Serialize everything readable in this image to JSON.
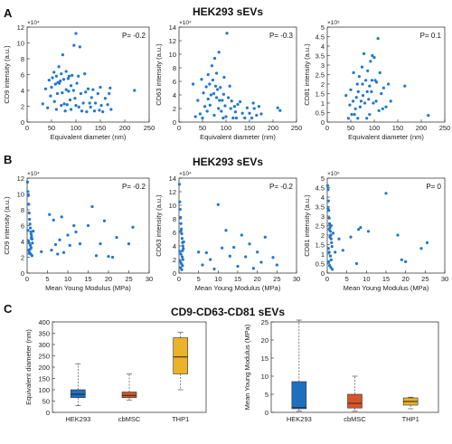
{
  "figure": {
    "panel_labels": [
      "A",
      "B",
      "C"
    ],
    "section_titles": [
      "HEK293 sEVs",
      "HEK293 sEVs",
      "CD9-CD63-CD81 sEVs"
    ],
    "colors": {
      "scatter": "#1f77d0",
      "hek": "#1f6fbf",
      "cbmsc": "#d4552a",
      "thp1": "#eab32a"
    }
  },
  "chart_data": [
    {
      "id": "a1",
      "type": "scatter",
      "panel": "A",
      "xlabel": "Equivalent diameter (nm)",
      "ylabel": "CD9 intensity (a.u.)",
      "xlim": [
        0,
        250
      ],
      "ylim": [
        0,
        12
      ],
      "xticks": [
        0,
        50,
        100,
        150,
        200,
        250
      ],
      "yticks": [
        0,
        2,
        4,
        6,
        8,
        10,
        12
      ],
      "exponent": "×10⁴",
      "annotation": "P= -0.2",
      "x": [
        32,
        38,
        42,
        45,
        48,
        50,
        52,
        55,
        56,
        58,
        60,
        60,
        62,
        63,
        65,
        66,
        68,
        70,
        70,
        72,
        73,
        75,
        76,
        78,
        80,
        80,
        82,
        84,
        85,
        86,
        88,
        90,
        90,
        92,
        95,
        96,
        98,
        100,
        100,
        102,
        105,
        106,
        108,
        110,
        112,
        115,
        118,
        120,
        122,
        125,
        128,
        130,
        132,
        135,
        138,
        140,
        145,
        148,
        150,
        152,
        155,
        160,
        165,
        168,
        170,
        172,
        220
      ],
      "y": [
        2.3,
        4.2,
        1.8,
        5.3,
        3.3,
        4.4,
        5.6,
        6.3,
        2.6,
        4.8,
        5.8,
        1.6,
        3.6,
        5.0,
        7.0,
        4.9,
        5.2,
        6.1,
        2.1,
        3.7,
        8.5,
        5.4,
        2.3,
        1.4,
        6.4,
        4.1,
        2.2,
        5.5,
        3.9,
        5.8,
        2.8,
        4.6,
        1.6,
        5.9,
        4.0,
        9.7,
        3.0,
        11.2,
        2.1,
        4.9,
        5.8,
        1.9,
        9.5,
        3.6,
        1.4,
        2.4,
        6.1,
        3.8,
        1.3,
        4.2,
        2.4,
        1.9,
        3.1,
        4.1,
        1.4,
        2.4,
        3.6,
        1.5,
        4.4,
        2.1,
        1.3,
        3.0,
        2.2,
        3.6,
        4.3,
        1.6,
        4.0
      ]
    },
    {
      "id": "a2",
      "type": "scatter",
      "panel": "A",
      "xlabel": "Equivalent diameter (nm)",
      "ylabel": "CD63 intensity (a.u.)",
      "xlim": [
        0,
        250
      ],
      "ylim": [
        0,
        14
      ],
      "xticks": [
        0,
        50,
        100,
        150,
        200,
        250
      ],
      "yticks": [
        0,
        2,
        4,
        6,
        8,
        10,
        12,
        14
      ],
      "exponent": "×10⁴",
      "annotation": "P= -0.3",
      "x": [
        30,
        35,
        40,
        45,
        48,
        50,
        52,
        55,
        58,
        60,
        62,
        62,
        65,
        66,
        68,
        70,
        72,
        74,
        75,
        76,
        78,
        80,
        80,
        82,
        84,
        85,
        86,
        88,
        90,
        92,
        94,
        95,
        96,
        98,
        100,
        102,
        105,
        108,
        110,
        112,
        115,
        118,
        120,
        122,
        125,
        130,
        135,
        140,
        145,
        150,
        155,
        158,
        160,
        165,
        170,
        175,
        210,
        215
      ],
      "y": [
        5.6,
        0.8,
        3.2,
        1.2,
        6.3,
        0.6,
        4.3,
        2.3,
        5.2,
        1.6,
        7.0,
        3.4,
        5.6,
        2.5,
        4.0,
        8.3,
        6.2,
        4.2,
        1.0,
        9.4,
        5.3,
        3.6,
        7.2,
        4.8,
        2.0,
        10.3,
        3.2,
        5.1,
        1.6,
        3.2,
        0.6,
        4.1,
        6.6,
        2.4,
        0.8,
        13.1,
        3.6,
        5.3,
        2.0,
        3.1,
        0.6,
        2.3,
        1.5,
        0.6,
        2.6,
        3.0,
        1.3,
        0.6,
        2.1,
        1.3,
        0.6,
        2.8,
        2.0,
        1.0,
        2.3,
        1.2,
        2.1,
        1.7
      ]
    },
    {
      "id": "a3",
      "type": "scatter",
      "panel": "A",
      "xlabel": "Equivalent diameter (nm)",
      "ylabel": "CD81 intensity (a.u.)",
      "xlim": [
        0,
        250
      ],
      "ylim": [
        0,
        5
      ],
      "xticks": [
        0,
        50,
        100,
        150,
        200,
        250
      ],
      "yticks": [
        0,
        0.5,
        1,
        1.5,
        2,
        2.5,
        3,
        3.5,
        4,
        4.5,
        5
      ],
      "exponent": "×10⁵",
      "annotation": "P= 0.1",
      "x": [
        40,
        45,
        48,
        50,
        52,
        55,
        56,
        58,
        60,
        62,
        64,
        65,
        66,
        68,
        70,
        72,
        74,
        75,
        76,
        78,
        80,
        82,
        84,
        85,
        86,
        88,
        90,
        90,
        92,
        94,
        95,
        96,
        98,
        100,
        102,
        104,
        105,
        108,
        110,
        112,
        115,
        118,
        120,
        125,
        130,
        135,
        165,
        215
      ],
      "y": [
        1.4,
        0.2,
        0.9,
        1.7,
        0.4,
        1.1,
        2.6,
        0.4,
        0.7,
        1.3,
        2.0,
        0.2,
        1.6,
        2.4,
        0.8,
        1.1,
        2.9,
        2.0,
        1.4,
        3.6,
        1.0,
        2.2,
        0.2,
        1.6,
        2.7,
        1.2,
        1.9,
        0.4,
        3.2,
        1.6,
        2.2,
        3.5,
        1.0,
        3.4,
        2.2,
        1.1,
        2.1,
        4.4,
        0.6,
        2.6,
        1.5,
        0.7,
        1.8,
        0.8,
        2.0,
        1.1,
        1.9,
        0.35
      ]
    },
    {
      "id": "b1",
      "type": "scatter",
      "panel": "B",
      "xlabel": "Mean Young Modulus (MPa)",
      "ylabel": "CD9 intensity (a.u.)",
      "xlim": [
        0,
        30
      ],
      "ylim": [
        0,
        12
      ],
      "xticks": [
        0,
        5,
        10,
        15,
        20,
        25,
        30
      ],
      "yticks": [
        0,
        2,
        4,
        6,
        8,
        10,
        12
      ],
      "exponent": "×10⁴",
      "annotation": "P= -0.2",
      "x": [
        0.1,
        0.2,
        0.3,
        0.4,
        0.5,
        0.6,
        0.7,
        0.8,
        0.9,
        1.0,
        1.1,
        1.2,
        0.3,
        0.5,
        0.8,
        1.0,
        0.4,
        0.6,
        0.9,
        1.2,
        0.2,
        0.7,
        1.5,
        0.5,
        1.0,
        1.3,
        3.5,
        5.5,
        6.0,
        6.5,
        7.0,
        7.5,
        8.0,
        8.5,
        9.0,
        10.0,
        10.5,
        11.5,
        12.0,
        13.0,
        15.0,
        16.0,
        17.0,
        18.0,
        19.0,
        20.0,
        21.0,
        22.0,
        25.0,
        26.0
      ],
      "y": [
        11.5,
        10.3,
        9.8,
        8.7,
        7.6,
        6.8,
        6.2,
        5.7,
        5.2,
        4.9,
        4.6,
        4.3,
        4.1,
        3.8,
        3.5,
        3.2,
        2.9,
        2.6,
        2.4,
        2.2,
        5.4,
        3.0,
        5.3,
        2.5,
        4.4,
        3.8,
        2.7,
        7.4,
        2.9,
        6.7,
        3.6,
        2.4,
        4.2,
        7.1,
        2.6,
        4.8,
        3.5,
        6.0,
        5.2,
        3.7,
        6.0,
        8.4,
        2.2,
        3.7,
        6.6,
        2.1,
        2.0,
        4.5,
        3.7,
        5.8
      ]
    },
    {
      "id": "b2",
      "type": "scatter",
      "panel": "B",
      "xlabel": "Mean Young Modulus (MPa)",
      "ylabel": "CD63 intensity (a.u.)",
      "xlim": [
        0,
        30
      ],
      "ylim": [
        0,
        14
      ],
      "xticks": [
        0,
        5,
        10,
        15,
        20,
        25,
        30
      ],
      "yticks": [
        0,
        2,
        4,
        6,
        8,
        10,
        12,
        14
      ],
      "exponent": "×10⁴",
      "annotation": "P= -0.2",
      "x": [
        0.1,
        0.2,
        0.3,
        0.4,
        0.5,
        0.6,
        0.7,
        0.8,
        0.9,
        1.0,
        1.1,
        0.2,
        0.5,
        0.8,
        1.0,
        0.3,
        0.6,
        0.9,
        0.4,
        0.7,
        1.2,
        0.5,
        0.9,
        5.0,
        6.0,
        7.0,
        8.0,
        9.0,
        10.0,
        11.0,
        12.0,
        13.0,
        14.0,
        15.0,
        16.0,
        17.0,
        18.0,
        19.0,
        20.0,
        21.0,
        22.0,
        24.0,
        25.0
      ],
      "y": [
        13.1,
        10.5,
        9.4,
        8.2,
        7.3,
        6.5,
        5.8,
        5.1,
        4.5,
        4.0,
        3.6,
        3.2,
        2.8,
        2.4,
        2.0,
        1.7,
        1.4,
        1.1,
        0.8,
        0.5,
        4.6,
        6.2,
        3.3,
        3.1,
        1.2,
        3.0,
        2.0,
        0.6,
        10.1,
        3.7,
        6.3,
        2.5,
        3.8,
        1.0,
        5.6,
        2.4,
        4.3,
        0.7,
        3.1,
        1.6,
        5.3,
        2.3,
        1.2
      ]
    },
    {
      "id": "b3",
      "type": "scatter",
      "panel": "B",
      "xlabel": "Mean Young Modulus (MPa)",
      "ylabel": "CD81 intensity (a.u.)",
      "xlim": [
        0,
        30
      ],
      "ylim": [
        0,
        5
      ],
      "xticks": [
        0,
        5,
        10,
        15,
        20,
        25,
        30
      ],
      "yticks": [
        0,
        0.5,
        1,
        1.5,
        2,
        2.5,
        3,
        3.5,
        4,
        4.5,
        5
      ],
      "exponent": "×10⁵",
      "annotation": "P= 0",
      "x": [
        0.1,
        0.2,
        0.3,
        0.4,
        0.5,
        0.6,
        0.7,
        0.8,
        0.9,
        1.0,
        1.1,
        1.2,
        0.3,
        0.5,
        0.8,
        1.0,
        0.4,
        0.6,
        0.9,
        1.3,
        0.2,
        0.7,
        1.5,
        0.5,
        1.0,
        2.0,
        3.0,
        4.0,
        6.0,
        7.5,
        8.0,
        8.5,
        10.5,
        15.0,
        18.0,
        19.0,
        20.0,
        24.0,
        25.5
      ],
      "y": [
        4.6,
        4.4,
        3.8,
        3.3,
        2.9,
        2.6,
        2.4,
        2.2,
        2.0,
        1.8,
        1.6,
        1.4,
        1.3,
        1.1,
        0.9,
        0.7,
        0.6,
        0.4,
        0.3,
        0.2,
        3.4,
        1.9,
        2.1,
        2.3,
        2.5,
        1.1,
        1.8,
        1.2,
        1.9,
        0.5,
        2.3,
        2.4,
        2.2,
        4.2,
        2.0,
        0.7,
        0.6,
        1.3,
        1.6
      ]
    },
    {
      "id": "c1",
      "type": "box",
      "panel": "C",
      "ylabel": "Equivalent diameter (nm)",
      "ylim": [
        0,
        400
      ],
      "yticks": [
        0,
        50,
        100,
        150,
        200,
        250,
        300,
        350,
        400
      ],
      "categories": [
        "HEK293",
        "cbMSC",
        "THP1"
      ],
      "boxes": [
        {
          "whisker_low": 30,
          "q1": 65,
          "median": 80,
          "q3": 100,
          "whisker_high": 215
        },
        {
          "whisker_low": 55,
          "q1": 65,
          "median": 75,
          "q3": 90,
          "whisker_high": 170
        },
        {
          "whisker_low": 100,
          "q1": 170,
          "median": 245,
          "q3": 330,
          "whisker_high": 355
        }
      ]
    },
    {
      "id": "c2",
      "type": "box",
      "panel": "C",
      "ylabel": "Mean Young Modulus (MPa)",
      "ylim": [
        0,
        25
      ],
      "yticks": [
        0,
        5,
        10,
        15,
        20,
        25
      ],
      "categories": [
        "HEK293",
        "cbMSC",
        "THP1"
      ],
      "boxes": [
        {
          "whisker_low": 0.3,
          "q1": 1.0,
          "median": 1.3,
          "q3": 8.5,
          "whisker_high": 25.5
        },
        {
          "whisker_low": 0.3,
          "q1": 1.2,
          "median": 2.5,
          "q3": 5.0,
          "whisker_high": 10.0
        },
        {
          "whisker_low": 1.0,
          "q1": 2.0,
          "median": 3.0,
          "q3": 4.0,
          "whisker_high": 4.2
        }
      ]
    }
  ]
}
